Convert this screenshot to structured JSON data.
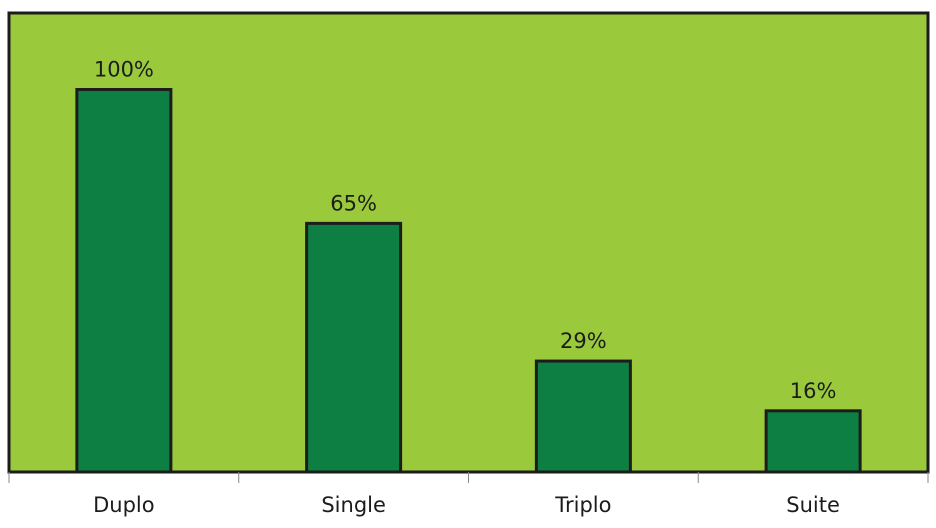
{
  "chart_data": {
    "type": "bar",
    "categories": [
      "Duplo",
      "Single",
      "Triplo",
      "Suite"
    ],
    "values": [
      100,
      65,
      29,
      16
    ],
    "value_labels": [
      "100%",
      "65%",
      "29%",
      "16%"
    ],
    "ylim": [
      0,
      120
    ],
    "grid": false,
    "legend": "none",
    "colors": {
      "plot_background": "#9ACA3C",
      "bar_fill": "#0E7F42",
      "bar_stroke": "#1C1C1C",
      "frame": "#1C1C1C",
      "text": "#1C1C1C"
    }
  }
}
